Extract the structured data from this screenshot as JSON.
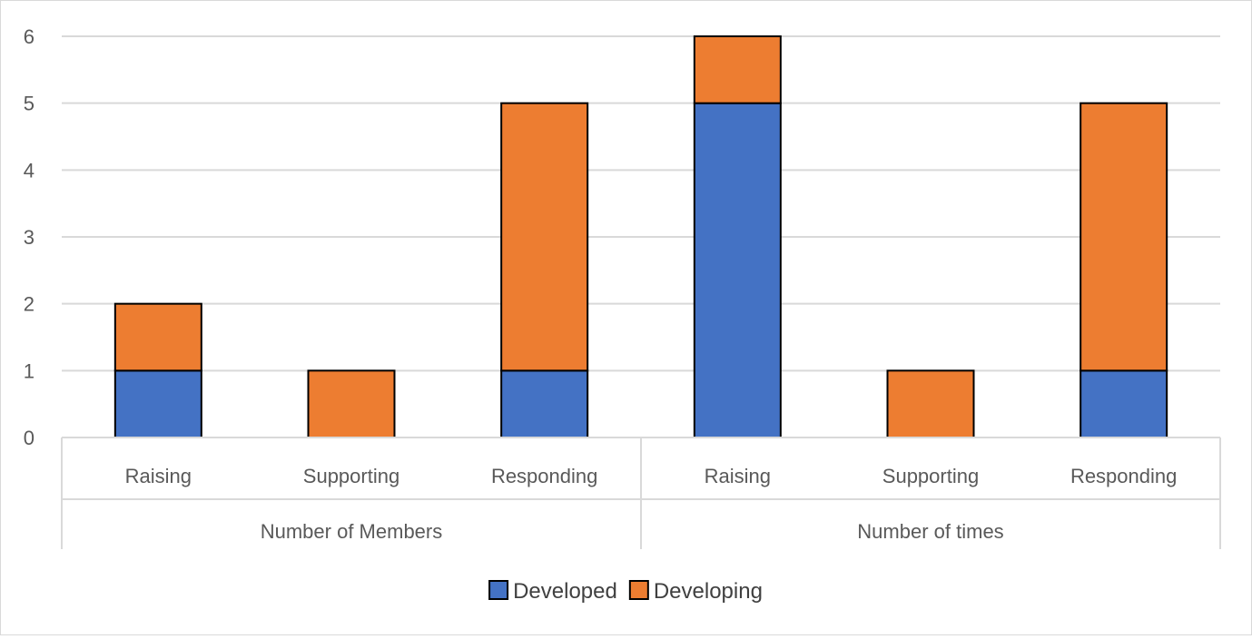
{
  "chart_data": {
    "type": "bar",
    "stacked": true,
    "groups": [
      {
        "label": "Number of Members",
        "categories": [
          "Raising",
          "Supporting",
          "Responding"
        ]
      },
      {
        "label": "Number of times",
        "categories": [
          "Raising",
          "Supporting",
          "Responding"
        ]
      }
    ],
    "categories": [
      "Raising",
      "Supporting",
      "Responding",
      "Raising",
      "Supporting",
      "Responding"
    ],
    "series": [
      {
        "name": "Developed",
        "color": "#4472C4",
        "values": [
          1,
          0,
          1,
          5,
          0,
          1
        ]
      },
      {
        "name": "Developing",
        "color": "#ED7D31",
        "values": [
          1,
          1,
          4,
          1,
          1,
          4
        ]
      }
    ],
    "ylim": [
      0,
      6
    ],
    "yticks": [
      0,
      1,
      2,
      3,
      4,
      5,
      6
    ],
    "grid": true,
    "legend_position": "bottom",
    "title": "",
    "xlabel": "",
    "ylabel": ""
  }
}
